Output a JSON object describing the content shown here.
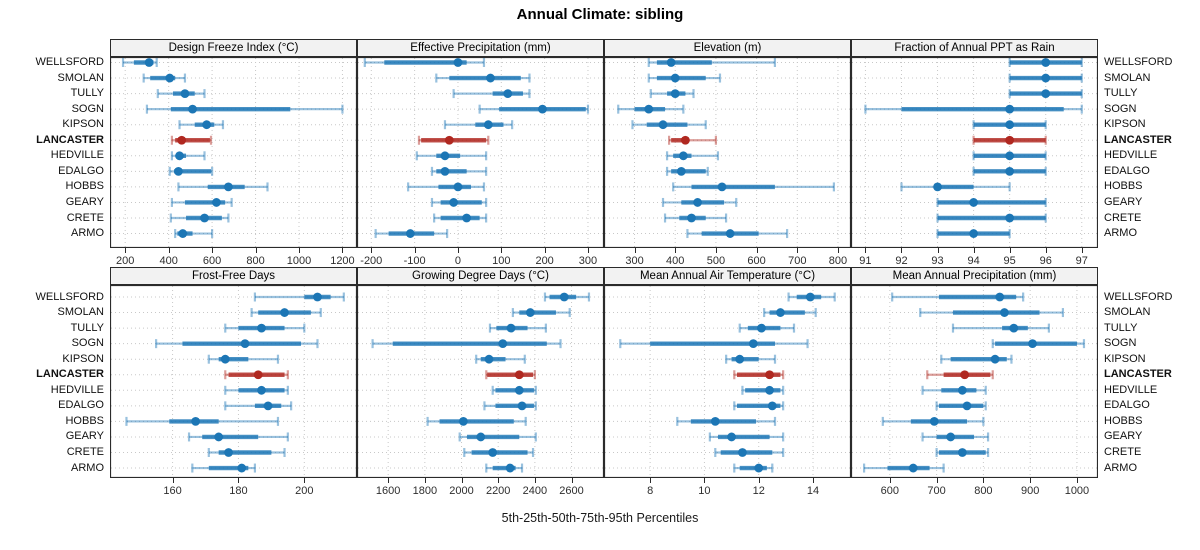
{
  "title": "Annual Climate: sibling",
  "footer": "5th-25th-50th-75th-95th Percentiles",
  "stations": [
    "WELLSFORD",
    "SMOLAN",
    "TULLY",
    "SOGN",
    "KIPSON",
    "LANCASTER",
    "HEDVILLE",
    "EDALGO",
    "HOBBS",
    "GEARY",
    "CRETE",
    "ARMO"
  ],
  "highlight_station": "LANCASTER",
  "percentile_labels": [
    "5th",
    "25th",
    "50th",
    "75th",
    "95th"
  ],
  "colors": {
    "series": "#1C76B5",
    "highlight": "#B02820",
    "grid": "#c8c8c8",
    "frame": "#2b2b2b",
    "strip_bg": "#f2f2f2",
    "tick_text": "#2e2e2e"
  },
  "chart_data": [
    {
      "type": "dot-interval",
      "title": "Design Freeze Index (°C)",
      "row": "top",
      "xlim": [
        130,
        1267
      ],
      "ticks": [
        200,
        400,
        600,
        800,
        1000,
        1200
      ],
      "values": {
        "WELLSFORD": [
          190,
          240,
          310,
          330,
          345
        ],
        "SMOLAN": [
          285,
          315,
          405,
          430,
          475
        ],
        "TULLY": [
          350,
          420,
          475,
          520,
          565
        ],
        "SOGN": [
          300,
          410,
          510,
          960,
          1200
        ],
        "KIPSON": [
          450,
          520,
          575,
          610,
          650
        ],
        "LANCASTER": [
          415,
          430,
          460,
          590,
          595
        ],
        "HEDVILLE": [
          415,
          435,
          450,
          480,
          565
        ],
        "EDALGO": [
          405,
          425,
          445,
          595,
          600
        ],
        "HOBBS": [
          445,
          580,
          675,
          750,
          855
        ],
        "GEARY": [
          415,
          475,
          620,
          660,
          690
        ],
        "CRETE": [
          410,
          480,
          565,
          645,
          675
        ],
        "ARMO": [
          430,
          440,
          465,
          510,
          600
        ]
      }
    },
    {
      "type": "dot-interval",
      "title": "Effective Precipitation (mm)",
      "row": "top",
      "xlim": [
        -233,
        337
      ],
      "ticks": [
        -200,
        -100,
        0,
        100,
        200,
        300
      ],
      "values": {
        "WELLSFORD": [
          -215,
          -170,
          0,
          20,
          60
        ],
        "SMOLAN": [
          -50,
          -20,
          75,
          145,
          165
        ],
        "TULLY": [
          -10,
          80,
          115,
          150,
          165
        ],
        "SOGN": [
          50,
          95,
          195,
          295,
          300
        ],
        "KIPSON": [
          -30,
          40,
          70,
          105,
          125
        ],
        "LANCASTER": [
          -90,
          -85,
          -20,
          65,
          70
        ],
        "HEDVILLE": [
          -95,
          -50,
          -30,
          5,
          65
        ],
        "EDALGO": [
          -60,
          -50,
          -30,
          20,
          65
        ],
        "HOBBS": [
          -115,
          -45,
          0,
          30,
          60
        ],
        "GEARY": [
          -60,
          -40,
          -10,
          55,
          65
        ],
        "CRETE": [
          -55,
          -40,
          20,
          50,
          65
        ],
        "ARMO": [
          -190,
          -160,
          -110,
          -55,
          -25
        ]
      }
    },
    {
      "type": "dot-interval",
      "title": "Elevation (m)",
      "row": "top",
      "xlim": [
        225,
        832
      ],
      "ticks": [
        300,
        400,
        500,
        600,
        700,
        800
      ],
      "values": {
        "WELLSFORD": [
          335,
          355,
          390,
          490,
          645
        ],
        "SMOLAN": [
          335,
          355,
          400,
          475,
          510
        ],
        "TULLY": [
          340,
          380,
          400,
          425,
          445
        ],
        "SOGN": [
          260,
          300,
          335,
          375,
          420
        ],
        "KIPSON": [
          295,
          330,
          370,
          430,
          475
        ],
        "LANCASTER": [
          385,
          390,
          425,
          430,
          500
        ],
        "HEDVILLE": [
          380,
          395,
          420,
          440,
          505
        ],
        "EDALGO": [
          380,
          390,
          415,
          475,
          480
        ],
        "HOBBS": [
          395,
          440,
          515,
          645,
          790
        ],
        "GEARY": [
          370,
          415,
          455,
          520,
          550
        ],
        "CRETE": [
          375,
          410,
          440,
          475,
          525
        ],
        "ARMO": [
          430,
          465,
          535,
          605,
          675
        ]
      }
    },
    {
      "type": "dot-interval",
      "title": "Fraction of Annual PPT as Rain",
      "row": "top",
      "xlim": [
        90.6,
        97.45
      ],
      "ticks": [
        91,
        92,
        93,
        94,
        95,
        96,
        97
      ],
      "values": {
        "WELLSFORD": [
          95,
          95,
          96,
          97,
          97
        ],
        "SMOLAN": [
          95,
          95,
          96,
          97,
          97
        ],
        "TULLY": [
          95,
          95,
          96,
          97,
          97
        ],
        "SOGN": [
          91,
          92,
          95,
          96.5,
          97
        ],
        "KIPSON": [
          94,
          94,
          95,
          96,
          96
        ],
        "LANCASTER": [
          94,
          94,
          95,
          96,
          96
        ],
        "HEDVILLE": [
          94,
          94,
          95,
          96,
          96
        ],
        "EDALGO": [
          94,
          94,
          95,
          96,
          96
        ],
        "HOBBS": [
          92,
          93,
          93,
          94,
          95
        ],
        "GEARY": [
          93,
          93,
          94,
          96,
          96
        ],
        "CRETE": [
          93,
          93,
          95,
          96,
          96
        ],
        "ARMO": [
          93,
          93,
          94,
          95,
          95
        ]
      }
    },
    {
      "type": "dot-interval",
      "title": "Frost-Free Days",
      "row": "bottom",
      "xlim": [
        141,
        216
      ],
      "ticks": [
        160,
        180,
        200
      ],
      "values": {
        "WELLSFORD": [
          185,
          200,
          204,
          208,
          212
        ],
        "SMOLAN": [
          184,
          186,
          194,
          202,
          205
        ],
        "TULLY": [
          176,
          180,
          187,
          194,
          200
        ],
        "SOGN": [
          155,
          163,
          182,
          199,
          204
        ],
        "KIPSON": [
          171,
          174,
          176,
          183,
          192
        ],
        "LANCASTER": [
          176,
          177,
          186,
          194,
          195
        ],
        "HEDVILLE": [
          176,
          180,
          187,
          194,
          195
        ],
        "EDALGO": [
          176,
          185,
          189,
          193,
          196
        ],
        "HOBBS": [
          146,
          159,
          167,
          174,
          192
        ],
        "GEARY": [
          165,
          169,
          174,
          186,
          195
        ],
        "CRETE": [
          171,
          174,
          177,
          190,
          194
        ],
        "ARMO": [
          166,
          171,
          181,
          183,
          185
        ]
      }
    },
    {
      "type": "dot-interval",
      "title": "Growing Degree Days (°C)",
      "row": "bottom",
      "xlim": [
        1430,
        2777
      ],
      "ticks": [
        1600,
        1800,
        2000,
        2200,
        2400,
        2600
      ],
      "values": {
        "WELLSFORD": [
          2455,
          2480,
          2560,
          2625,
          2695
        ],
        "SMOLAN": [
          2280,
          2315,
          2375,
          2515,
          2590
        ],
        "TULLY": [
          2155,
          2190,
          2270,
          2360,
          2460
        ],
        "SOGN": [
          1515,
          1625,
          2225,
          2465,
          2540
        ],
        "KIPSON": [
          2080,
          2105,
          2150,
          2240,
          2345
        ],
        "LANCASTER": [
          2135,
          2140,
          2315,
          2390,
          2400
        ],
        "HEDVILLE": [
          2170,
          2185,
          2315,
          2395,
          2405
        ],
        "EDALGO": [
          2125,
          2185,
          2330,
          2395,
          2405
        ],
        "HOBBS": [
          1815,
          1880,
          2010,
          2285,
          2350
        ],
        "GEARY": [
          1990,
          2030,
          2105,
          2315,
          2405
        ],
        "CRETE": [
          2015,
          2055,
          2170,
          2360,
          2390
        ],
        "ARMO": [
          2135,
          2170,
          2265,
          2295,
          2330
        ]
      }
    },
    {
      "type": "dot-interval",
      "title": "Mean Annual Air Temperature (°C)",
      "row": "bottom",
      "xlim": [
        6.3,
        15.4
      ],
      "ticks": [
        8,
        10,
        12,
        14
      ],
      "values": {
        "WELLSFORD": [
          13.1,
          13.4,
          13.9,
          14.3,
          14.8
        ],
        "SMOLAN": [
          12.2,
          12.4,
          12.8,
          13.7,
          14.1
        ],
        "TULLY": [
          11.3,
          11.6,
          12.1,
          12.8,
          13.3
        ],
        "SOGN": [
          6.9,
          8.0,
          11.8,
          12.6,
          13.8
        ],
        "KIPSON": [
          10.8,
          11.0,
          11.3,
          12.0,
          12.6
        ],
        "LANCASTER": [
          11.1,
          11.2,
          12.4,
          12.8,
          12.9
        ],
        "HEDVILLE": [
          11.4,
          11.5,
          12.4,
          12.8,
          12.9
        ],
        "EDALGO": [
          11.1,
          11.2,
          12.5,
          12.8,
          12.9
        ],
        "HOBBS": [
          9.0,
          9.5,
          10.4,
          11.9,
          12.6
        ],
        "GEARY": [
          10.2,
          10.5,
          11.0,
          12.4,
          12.9
        ],
        "CRETE": [
          10.4,
          10.6,
          11.4,
          12.5,
          12.9
        ],
        "ARMO": [
          11.1,
          11.3,
          12.0,
          12.3,
          12.5
        ]
      }
    },
    {
      "type": "dot-interval",
      "title": "Mean Annual Precipitation (mm)",
      "row": "bottom",
      "xlim": [
        517,
        1045
      ],
      "ticks": [
        600,
        700,
        800,
        900,
        1000
      ],
      "values": {
        "WELLSFORD": [
          605,
          705,
          835,
          870,
          885
        ],
        "SMOLAN": [
          665,
          735,
          845,
          920,
          970
        ],
        "TULLY": [
          735,
          840,
          865,
          895,
          940
        ],
        "SOGN": [
          820,
          825,
          905,
          1000,
          1015
        ],
        "KIPSON": [
          710,
          730,
          825,
          850,
          860
        ],
        "LANCASTER": [
          680,
          715,
          760,
          815,
          820
        ],
        "HEDVILLE": [
          670,
          710,
          755,
          785,
          805
        ],
        "EDALGO": [
          700,
          705,
          765,
          800,
          805
        ],
        "HOBBS": [
          585,
          645,
          695,
          765,
          800
        ],
        "GEARY": [
          670,
          700,
          730,
          780,
          810
        ],
        "CRETE": [
          700,
          705,
          755,
          805,
          810
        ],
        "ARMO": [
          545,
          595,
          650,
          685,
          715
        ]
      }
    }
  ]
}
